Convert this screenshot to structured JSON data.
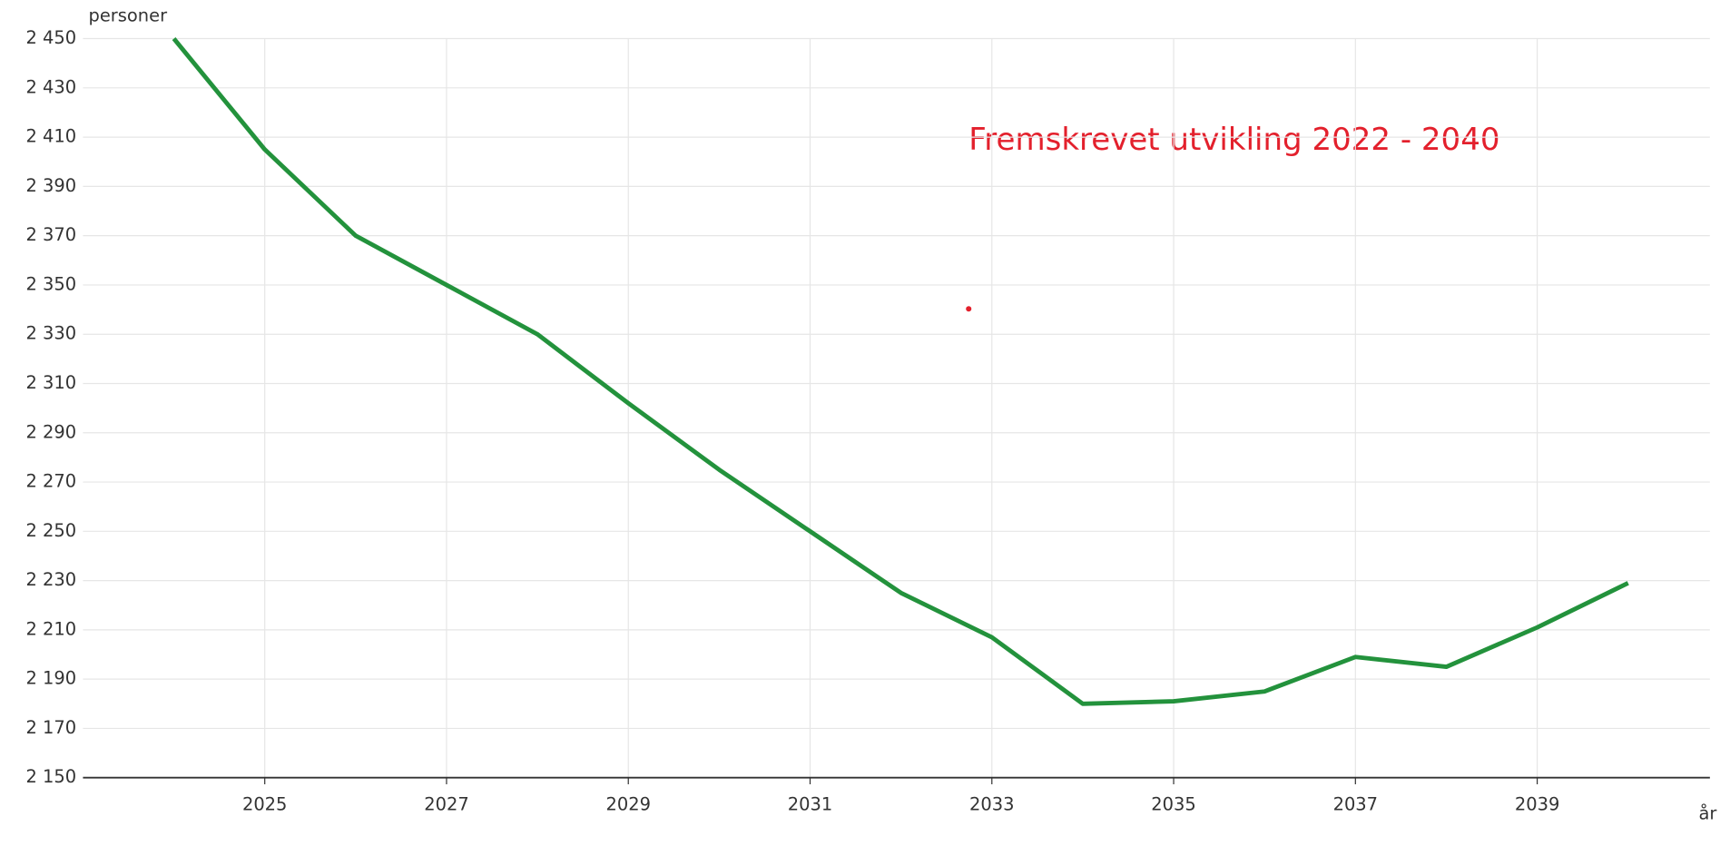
{
  "chart_data": {
    "type": "line",
    "y_label": "personer",
    "x_label": "år",
    "annotation": "Fremskrevet utvikling 2022 - 2040",
    "annotation_color": "#e3202c",
    "x": [
      2024,
      2025,
      2026,
      2027,
      2028,
      2029,
      2030,
      2031,
      2032,
      2033,
      2034,
      2035,
      2036,
      2037,
      2038,
      2039,
      2040
    ],
    "series": [
      {
        "color": "#23923c",
        "values": [
          2450,
          2405,
          2370,
          2350,
          2330,
          2302,
          2275,
          2250,
          2225,
          2207,
          2180,
          2181,
          2185,
          2199,
          2195,
          2211,
          2229
        ]
      }
    ],
    "xlim": [
      2023,
      2040.9
    ],
    "xticks": [
      2025,
      2027,
      2029,
      2031,
      2033,
      2035,
      2037,
      2039
    ],
    "ylim": [
      2150,
      2450
    ],
    "yticks": [
      {
        "value": 2150,
        "label": "2 150"
      },
      {
        "value": 2170,
        "label": "2 170"
      },
      {
        "value": 2190,
        "label": "2 190"
      },
      {
        "value": 2210,
        "label": "2 210"
      },
      {
        "value": 2230,
        "label": "2 230"
      },
      {
        "value": 2250,
        "label": "2 250"
      },
      {
        "value": 2270,
        "label": "2 270"
      },
      {
        "value": 2290,
        "label": "2 290"
      },
      {
        "value": 2310,
        "label": "2 310"
      },
      {
        "value": 2330,
        "label": "2 330"
      },
      {
        "value": 2350,
        "label": "2 350"
      },
      {
        "value": 2370,
        "label": "2 370"
      },
      {
        "value": 2390,
        "label": "2 390"
      },
      {
        "value": 2410,
        "label": "2 410"
      },
      {
        "value": 2430,
        "label": "2 430"
      },
      {
        "value": 2450,
        "label": "2 450"
      }
    ],
    "grid": true
  }
}
